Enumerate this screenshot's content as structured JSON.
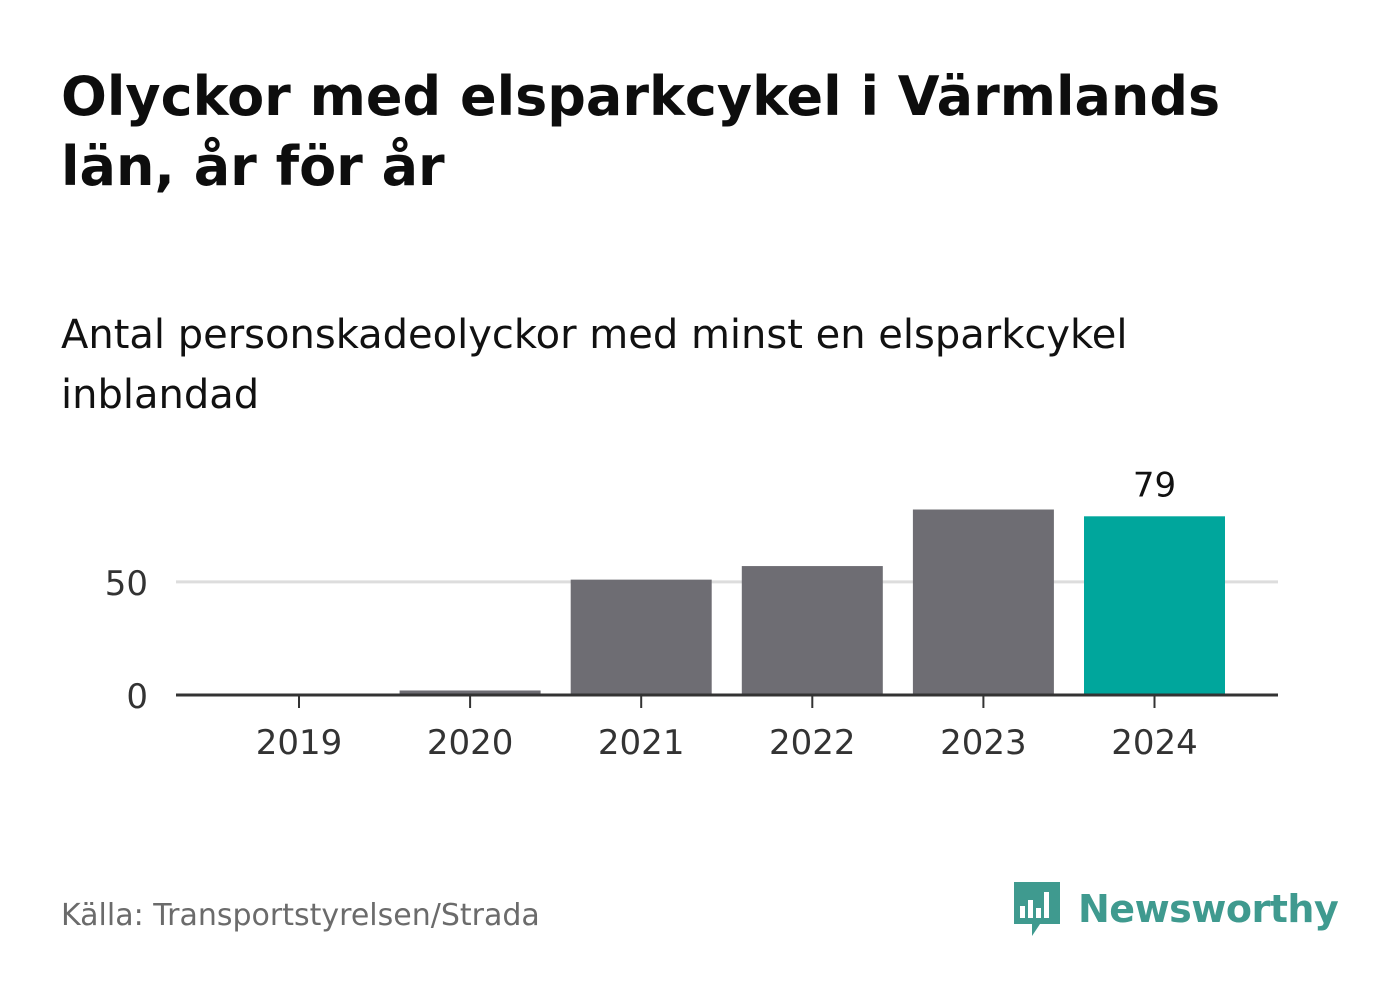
{
  "title": "Olyckor med elsparkcykel i Värmlands län, år för år",
  "subtitle": "Antal personskadeolyckor med minst en elsparkcykel inblandad",
  "source": "Källa: Transportstyrelsen/Strada",
  "brand": {
    "name": "Newsworthy",
    "icon": "newsworthy-logo-icon",
    "color": "#3f9a8f"
  },
  "colors": {
    "bar": "#6e6d73",
    "highlight": "#00a69c",
    "grid": "#dddddd",
    "axis": "#333333"
  },
  "chart_data": {
    "type": "bar",
    "categories": [
      "2019",
      "2020",
      "2021",
      "2022",
      "2023",
      "2024"
    ],
    "values": [
      0,
      2,
      51,
      57,
      82,
      79
    ],
    "highlight_index": 5,
    "data_labels": [
      {
        "index": 5,
        "text": "79"
      }
    ],
    "yticks": [
      0,
      50
    ],
    "ylim": [
      0,
      85
    ],
    "grid": true,
    "legend": "none"
  }
}
